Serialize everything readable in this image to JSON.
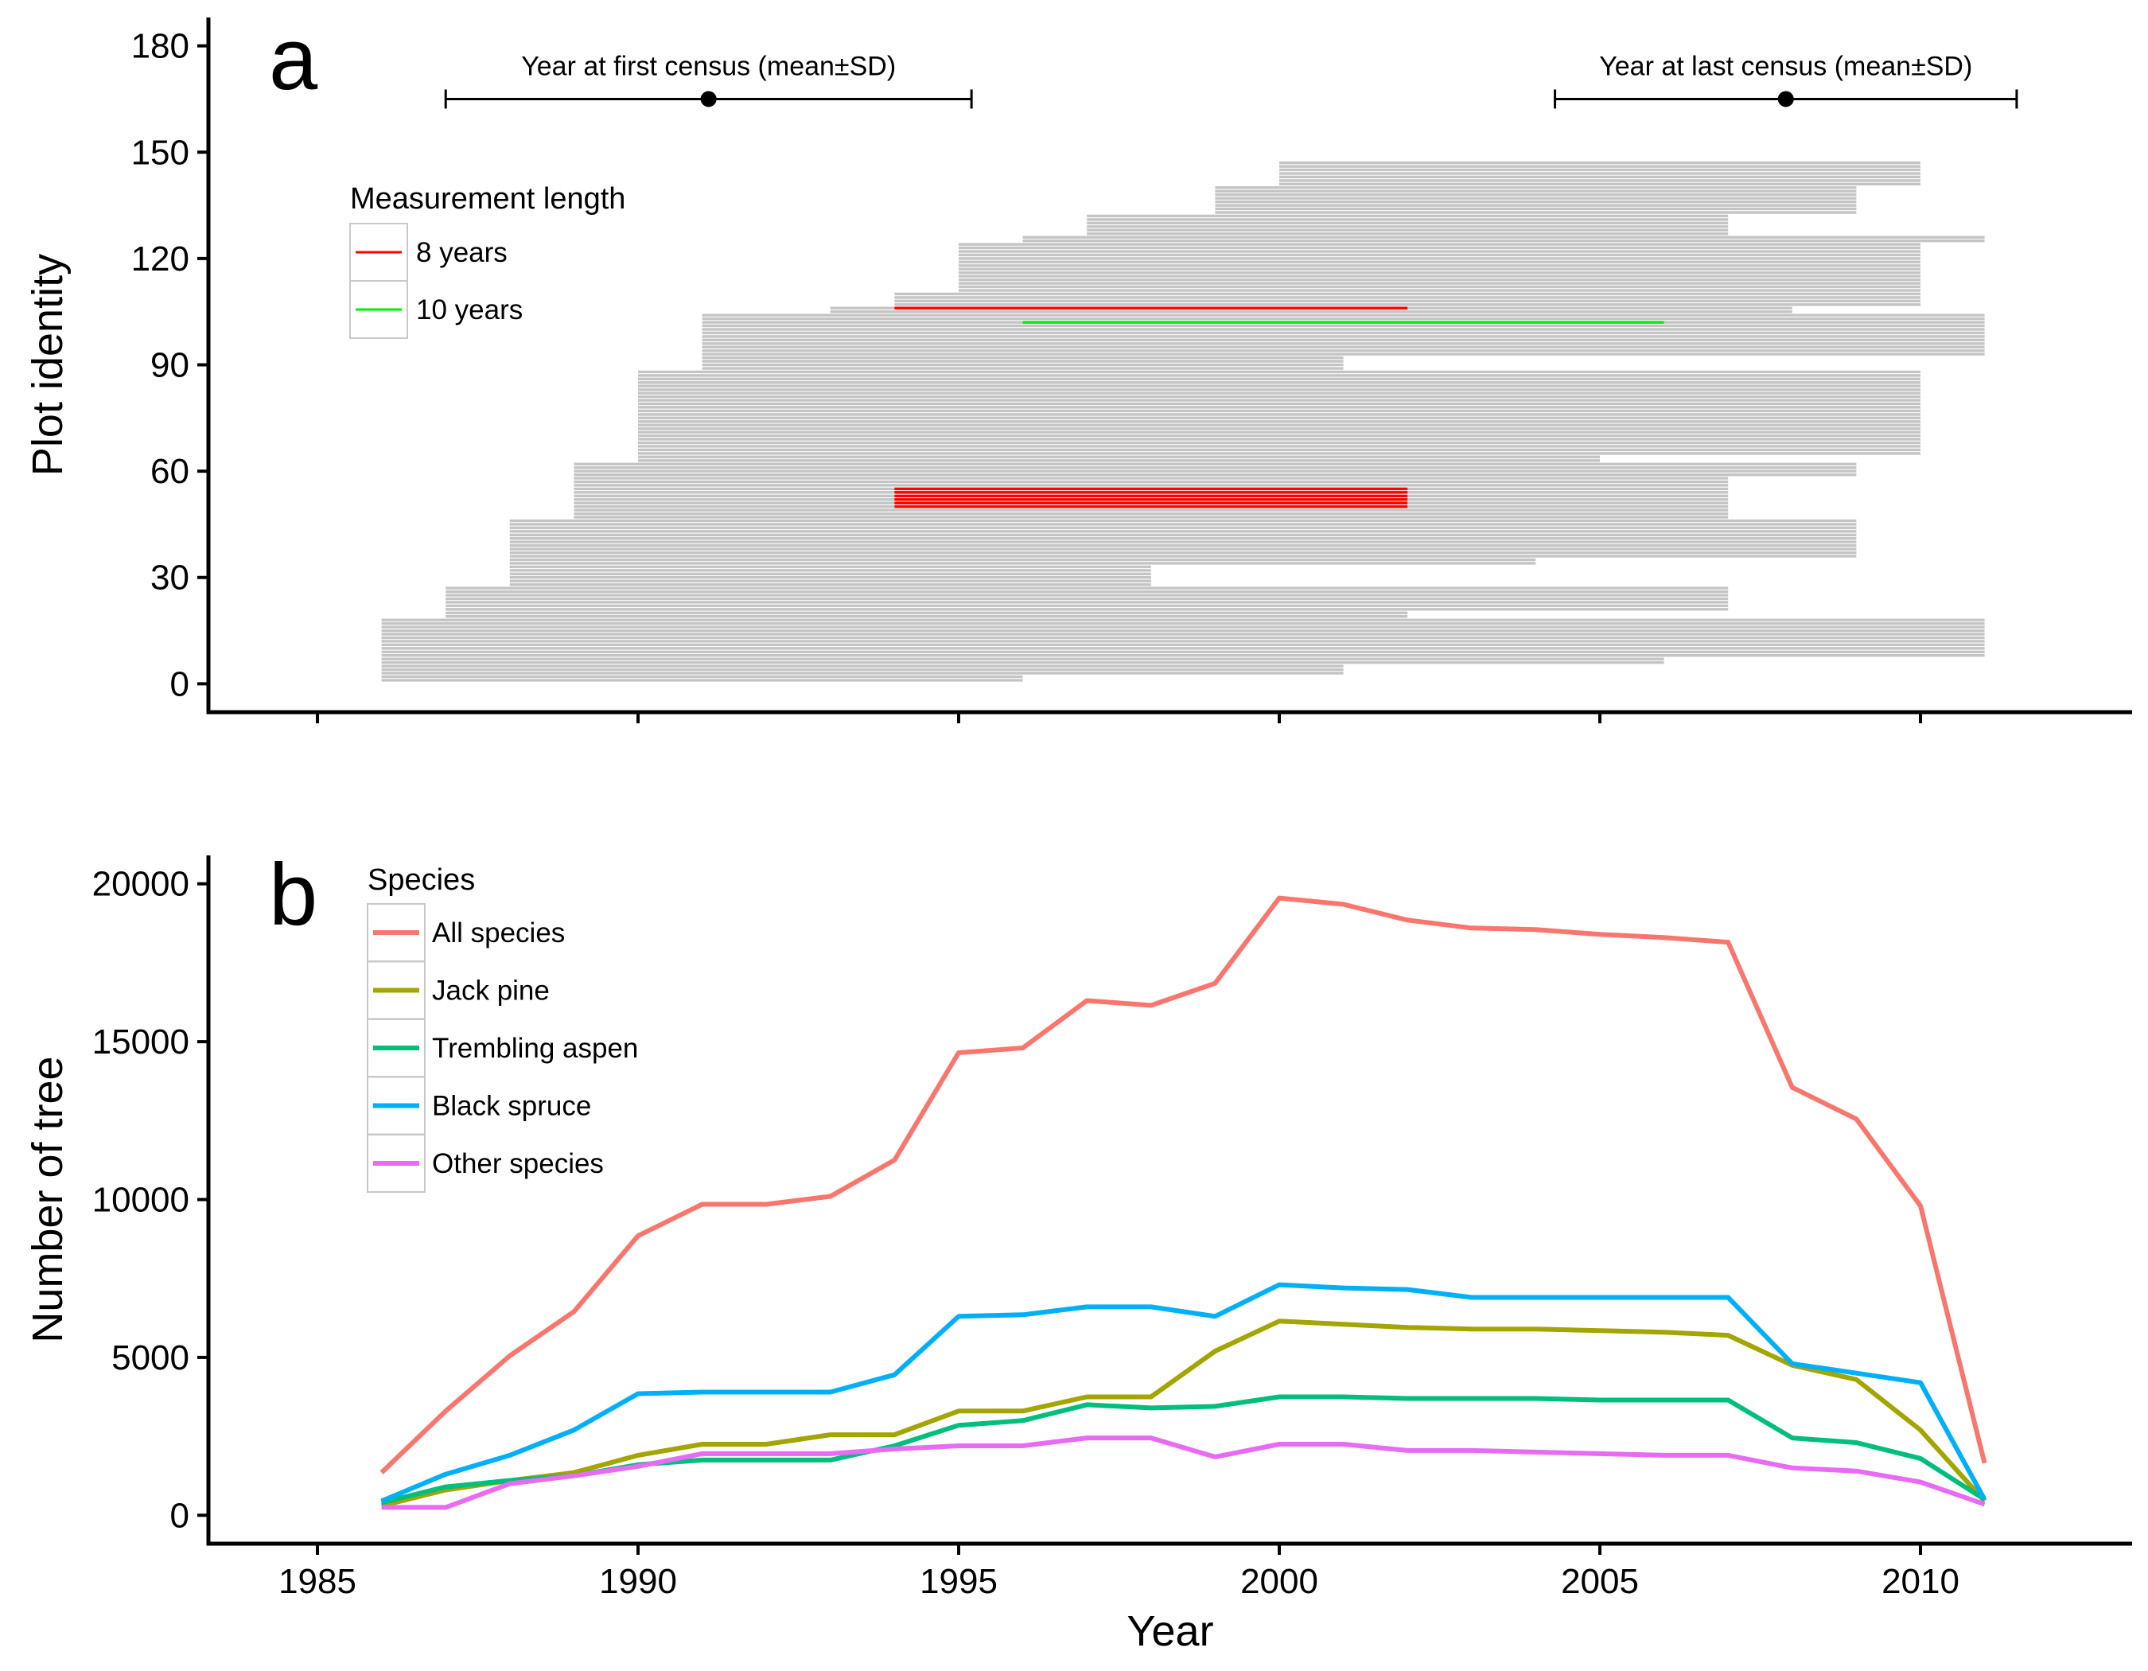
{
  "chart_data": [
    {
      "panel": "a",
      "type": "bar",
      "orientation": "horizontal-segments",
      "ylabel": "Plot identity",
      "xlim": [
        1983.3,
        2013.3
      ],
      "ylim": [
        -8,
        188
      ],
      "x_ticks": [
        "1985",
        "1990",
        "1995",
        "2000",
        "2005",
        "2010"
      ],
      "y_ticks": [
        "0",
        "30",
        "60",
        "90",
        "120",
        "150",
        "180"
      ],
      "grid": false,
      "census_summary": [
        {
          "label": "Year at first census (mean±SD)",
          "mean": 1991.1,
          "low": 1987.0,
          "high": 1995.2,
          "y": 165
        },
        {
          "label": "Year at last census (mean±SD)",
          "mean": 2007.9,
          "low": 2004.3,
          "high": 2011.5,
          "y": 165
        }
      ],
      "legend": {
        "title": "Measurement length",
        "position": "top-left",
        "items": [
          {
            "label": "8  years",
            "color": "#ff0000"
          },
          {
            "label": "10  years",
            "color": "#00ee00"
          }
        ]
      },
      "background_color": "#c4c4c4",
      "plot_groups": [
        {
          "from": 1,
          "to": 2,
          "start": 1986,
          "end": 1996
        },
        {
          "from": 3,
          "to": 5,
          "start": 1986,
          "end": 2001
        },
        {
          "from": 6,
          "to": 7,
          "start": 1986,
          "end": 2006
        },
        {
          "from": 8,
          "to": 18,
          "start": 1986,
          "end": 2011
        },
        {
          "from": 19,
          "to": 20,
          "start": 1987,
          "end": 2002
        },
        {
          "from": 21,
          "to": 27,
          "start": 1987,
          "end": 2007
        },
        {
          "from": 28,
          "to": 33,
          "start": 1988,
          "end": 1998
        },
        {
          "from": 34,
          "to": 35,
          "start": 1988,
          "end": 2004
        },
        {
          "from": 36,
          "to": 46,
          "start": 1988,
          "end": 2009
        },
        {
          "from": 47,
          "to": 58,
          "start": 1989,
          "end": 2007
        },
        {
          "from": 59,
          "to": 62,
          "start": 1989,
          "end": 2009
        },
        {
          "from": 63,
          "to": 64,
          "start": 1990,
          "end": 2005
        },
        {
          "from": 65,
          "to": 88,
          "start": 1990,
          "end": 2010
        },
        {
          "from": 89,
          "to": 92,
          "start": 1991,
          "end": 2001
        },
        {
          "from": 93,
          "to": 104,
          "start": 1991,
          "end": 2011
        },
        {
          "from": 105,
          "to": 106,
          "start": 1993,
          "end": 2008
        },
        {
          "from": 107,
          "to": 110,
          "start": 1994,
          "end": 2010
        },
        {
          "from": 111,
          "to": 124,
          "start": 1995,
          "end": 2010
        },
        {
          "from": 125,
          "to": 126,
          "start": 1996,
          "end": 2011
        },
        {
          "from": 127,
          "to": 132,
          "start": 1997,
          "end": 2007
        },
        {
          "from": 133,
          "to": 140,
          "start": 1999,
          "end": 2009
        },
        {
          "from": 141,
          "to": 147,
          "start": 2000,
          "end": 2010
        }
      ],
      "highlighted_plots": [
        {
          "plot": 50,
          "start": 1994,
          "end": 2002,
          "length": "8  years"
        },
        {
          "plot": 51,
          "start": 1994,
          "end": 2002,
          "length": "8  years"
        },
        {
          "plot": 52,
          "start": 1994,
          "end": 2002,
          "length": "8  years"
        },
        {
          "plot": 53,
          "start": 1994,
          "end": 2002,
          "length": "8  years"
        },
        {
          "plot": 54,
          "start": 1994,
          "end": 2002,
          "length": "8  years"
        },
        {
          "plot": 55,
          "start": 1994,
          "end": 2002,
          "length": "8  years"
        },
        {
          "plot": 106,
          "start": 1994,
          "end": 2002,
          "length": "8  years"
        },
        {
          "plot": 102,
          "start": 1996,
          "end": 2006,
          "length": "10  years"
        }
      ]
    },
    {
      "panel": "b",
      "type": "line",
      "xlabel": "Year",
      "ylabel": "Number of tree",
      "xlim": [
        1983.3,
        2013.3
      ],
      "ylim": [
        -900,
        20900
      ],
      "x_ticks": [
        "1985",
        "1990",
        "1995",
        "2000",
        "2005",
        "2010"
      ],
      "y_ticks": [
        "0",
        "5000",
        "10000",
        "15000",
        "20000"
      ],
      "grid": false,
      "legend": {
        "title": "Species",
        "position": "top-left"
      },
      "x": [
        1986,
        1987,
        1988,
        1989,
        1990,
        1991,
        1992,
        1993,
        1994,
        1995,
        1996,
        1997,
        1998,
        1999,
        2000,
        2001,
        2002,
        2003,
        2004,
        2005,
        2006,
        2007,
        2008,
        2009,
        2010,
        2011
      ],
      "series": [
        {
          "name": "All species",
          "color": "#f8766d",
          "values": [
            1350,
            3300,
            5050,
            6450,
            8850,
            9850,
            9850,
            10100,
            11250,
            14650,
            14800,
            16300,
            16150,
            16850,
            19550,
            19350,
            18850,
            18600,
            18550,
            18400,
            18300,
            18150,
            13550,
            12550,
            9800,
            1650
          ]
        },
        {
          "name": "Jack pine",
          "color": "#a3a500",
          "values": [
            300,
            800,
            1100,
            1350,
            1900,
            2250,
            2250,
            2550,
            2550,
            3300,
            3300,
            3750,
            3750,
            5200,
            6150,
            6050,
            5950,
            5900,
            5900,
            5850,
            5800,
            5700,
            4750,
            4300,
            2700,
            450
          ]
        },
        {
          "name": "Trembling aspen",
          "color": "#00bf7d",
          "values": [
            400,
            900,
            1100,
            1250,
            1600,
            1750,
            1750,
            1750,
            2200,
            2850,
            3000,
            3500,
            3400,
            3450,
            3750,
            3750,
            3700,
            3700,
            3700,
            3650,
            3650,
            3650,
            2450,
            2300,
            1800,
            500
          ]
        },
        {
          "name": "Black spruce",
          "color": "#00b0f6",
          "values": [
            450,
            1300,
            1900,
            2700,
            3850,
            3900,
            3900,
            3900,
            4450,
            6300,
            6350,
            6600,
            6600,
            6300,
            7300,
            7200,
            7150,
            6900,
            6900,
            6900,
            6900,
            6900,
            4800,
            4500,
            4200,
            500
          ]
        },
        {
          "name": "Other species",
          "color": "#e76bf3",
          "values": [
            250,
            250,
            1000,
            1250,
            1550,
            1950,
            1950,
            1950,
            2100,
            2200,
            2200,
            2450,
            2450,
            1850,
            2250,
            2250,
            2050,
            2050,
            2000,
            1950,
            1900,
            1900,
            1500,
            1400,
            1050,
            350
          ]
        }
      ]
    }
  ]
}
